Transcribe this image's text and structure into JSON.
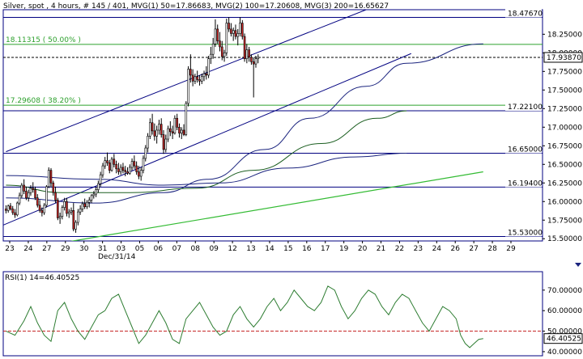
{
  "header": {
    "title": "Silver, spot , 4 hours, # 145 / 401, MVG(1) 50=17.86683, MVG(2) 100=17.20608, MVG(3) 200=16.65627"
  },
  "colors": {
    "candle_up": "#ffffff",
    "candle_down": "#c62828",
    "candle_outline": "#000000",
    "frame": "#000080",
    "channel": "#000080",
    "fib": "#2ca02c",
    "ma50": "#1a237e",
    "ma100": "#1b5e20",
    "ma200": "#1a237e",
    "ma_trend": "#33bb33",
    "rsi_line": "#2e7d32",
    "rsi_ref": "#c62828",
    "price_line": "#000000"
  },
  "chart_data": [
    {
      "type": "candlestick",
      "title": "Silver, spot , 4 hours, # 145 / 401, MVG(1) 50=17.86683, MVG(2) 100=17.20608, MVG(3) 200=16.65627",
      "ylim": [
        15.47,
        18.58
      ],
      "y_ticks": [
        15.5,
        15.75,
        16.0,
        16.25,
        16.5,
        16.75,
        17.0,
        17.25,
        17.5,
        17.75,
        18.0,
        18.25
      ],
      "y_tick_labels": [
        "15.50000",
        "15.75000",
        "16.00000",
        "16.25000",
        "16.50000",
        "16.75000",
        "17.00000",
        "17.25000",
        "17.50000",
        "17.75000",
        "18.00000",
        "18.25000"
      ],
      "x_ticks": [
        "23",
        "24",
        "27",
        "29",
        "30",
        "31",
        "03",
        "05",
        "06",
        "07",
        "08",
        "09",
        "12",
        "13",
        "14",
        "15",
        "16",
        "17",
        "19",
        "20",
        "21",
        "22",
        "23",
        "24",
        "26",
        "27",
        "28",
        "29"
      ],
      "x_sublabel": "Dec/31/14",
      "last_price": 17.9387,
      "last_price_label": "17.93870",
      "levels": [
        {
          "value": 18.4767,
          "label": "18.47670",
          "kind": "horizontal"
        },
        {
          "value": 17.221,
          "label": "17.22100",
          "kind": "horizontal"
        },
        {
          "value": 16.65,
          "label": "16.65000",
          "kind": "horizontal"
        },
        {
          "value": 16.194,
          "label": "16.19400",
          "kind": "horizontal"
        },
        {
          "value": 15.53,
          "label": "15.53000",
          "kind": "horizontal"
        }
      ],
      "fib_levels": [
        {
          "value": 18.11315,
          "label": "18.11315 ( 50.00% )"
        },
        {
          "value": 17.29608,
          "label": "17.29608 ( 38.20% )"
        }
      ],
      "channel": {
        "upper": [
          [
            0,
            16.67
          ],
          [
            160,
            18.58
          ]
        ],
        "lower": [
          [
            -18,
            15.47
          ],
          [
            180,
            17.99
          ]
        ]
      },
      "trend_line": [
        [
          20,
          15.42
        ],
        [
          212,
          16.4
        ]
      ],
      "candles": [
        [
          15.9,
          15.95,
          15.84,
          15.88
        ],
        [
          15.88,
          15.96,
          15.85,
          15.94
        ],
        [
          15.94,
          15.98,
          15.88,
          15.9
        ],
        [
          15.9,
          15.94,
          15.82,
          15.85
        ],
        [
          15.85,
          15.9,
          15.78,
          15.82
        ],
        [
          15.82,
          16.0,
          15.8,
          15.98
        ],
        [
          15.98,
          16.12,
          15.95,
          16.08
        ],
        [
          16.08,
          16.25,
          16.05,
          16.22
        ],
        [
          16.22,
          16.3,
          16.1,
          16.14
        ],
        [
          16.14,
          16.2,
          16.02,
          16.05
        ],
        [
          16.05,
          16.16,
          16.0,
          16.12
        ],
        [
          16.12,
          16.22,
          16.08,
          16.18
        ],
        [
          16.18,
          16.26,
          16.12,
          16.16
        ],
        [
          16.16,
          16.2,
          16.02,
          16.05
        ],
        [
          16.05,
          16.1,
          15.92,
          15.95
        ],
        [
          15.95,
          16.02,
          15.85,
          15.88
        ],
        [
          15.88,
          15.92,
          15.8,
          15.85
        ],
        [
          15.85,
          15.98,
          15.82,
          15.95
        ],
        [
          15.95,
          16.22,
          15.92,
          16.2
        ],
        [
          16.2,
          16.46,
          16.18,
          16.42
        ],
        [
          16.42,
          16.45,
          16.2,
          16.25
        ],
        [
          16.25,
          16.28,
          16.08,
          16.12
        ],
        [
          16.12,
          16.2,
          15.98,
          16.02
        ],
        [
          16.02,
          16.05,
          15.75,
          15.78
        ],
        [
          15.78,
          15.85,
          15.7,
          15.8
        ],
        [
          15.8,
          15.95,
          15.76,
          15.92
        ],
        [
          15.92,
          16.05,
          15.88,
          16.0
        ],
        [
          16.0,
          16.05,
          15.8,
          15.84
        ],
        [
          15.84,
          15.9,
          15.78,
          15.86
        ],
        [
          15.86,
          15.92,
          15.82,
          15.88
        ],
        [
          15.88,
          15.98,
          15.6,
          15.63
        ],
        [
          15.63,
          15.75,
          15.58,
          15.72
        ],
        [
          15.72,
          15.9,
          15.68,
          15.86
        ],
        [
          15.86,
          15.95,
          15.82,
          15.9
        ],
        [
          15.9,
          16.0,
          15.86,
          15.97
        ],
        [
          15.97,
          16.04,
          15.9,
          15.93
        ],
        [
          15.93,
          16.02,
          15.9,
          15.99
        ],
        [
          15.99,
          16.06,
          15.92,
          16.02
        ],
        [
          16.02,
          16.1,
          15.98,
          16.08
        ],
        [
          16.08,
          16.14,
          16.04,
          16.1
        ],
        [
          16.1,
          16.2,
          16.06,
          16.16
        ],
        [
          16.16,
          16.28,
          16.12,
          16.24
        ],
        [
          16.24,
          16.4,
          16.2,
          16.36
        ],
        [
          16.36,
          16.52,
          16.32,
          16.48
        ],
        [
          16.48,
          16.6,
          16.44,
          16.55
        ],
        [
          16.55,
          16.66,
          16.48,
          16.52
        ],
        [
          16.52,
          16.56,
          16.38,
          16.42
        ],
        [
          16.42,
          16.6,
          16.4,
          16.57
        ],
        [
          16.57,
          16.64,
          16.46,
          16.5
        ],
        [
          16.5,
          16.55,
          16.38,
          16.44
        ],
        [
          16.44,
          16.52,
          16.36,
          16.4
        ],
        [
          16.4,
          16.5,
          16.36,
          16.46
        ],
        [
          16.46,
          16.52,
          16.38,
          16.42
        ],
        [
          16.42,
          16.48,
          16.34,
          16.4
        ],
        [
          16.4,
          16.46,
          16.36,
          16.38
        ],
        [
          16.38,
          16.5,
          16.36,
          16.46
        ],
        [
          16.46,
          16.58,
          16.42,
          16.54
        ],
        [
          16.54,
          16.62,
          16.44,
          16.48
        ],
        [
          16.48,
          16.54,
          16.36,
          16.4
        ],
        [
          16.4,
          16.48,
          16.3,
          16.34
        ],
        [
          16.34,
          16.46,
          16.28,
          16.42
        ],
        [
          16.42,
          16.62,
          16.38,
          16.58
        ],
        [
          16.58,
          16.76,
          16.54,
          16.72
        ],
        [
          16.72,
          16.92,
          16.66,
          16.88
        ],
        [
          16.88,
          17.12,
          16.84,
          17.06
        ],
        [
          17.06,
          17.18,
          16.9,
          16.95
        ],
        [
          16.95,
          17.05,
          16.82,
          16.88
        ],
        [
          16.88,
          17.02,
          16.78,
          16.96
        ],
        [
          16.96,
          17.1,
          16.9,
          17.04
        ],
        [
          17.04,
          17.12,
          16.86,
          16.9
        ],
        [
          16.9,
          16.96,
          16.64,
          16.7
        ],
        [
          16.7,
          16.9,
          16.66,
          16.84
        ],
        [
          16.84,
          17.02,
          16.8,
          16.98
        ],
        [
          16.98,
          17.08,
          16.88,
          16.94
        ],
        [
          16.94,
          17.02,
          16.84,
          16.92
        ],
        [
          16.92,
          17.16,
          16.9,
          17.12
        ],
        [
          17.12,
          17.18,
          16.96,
          17.0
        ],
        [
          17.0,
          17.05,
          16.86,
          16.92
        ],
        [
          16.92,
          17.0,
          16.84,
          16.96
        ],
        [
          16.96,
          17.04,
          16.88,
          16.9
        ],
        [
          16.9,
          17.35,
          16.88,
          17.32
        ],
        [
          17.32,
          17.82,
          17.28,
          17.78
        ],
        [
          17.78,
          17.98,
          17.6,
          17.7
        ],
        [
          17.7,
          17.78,
          17.55,
          17.62
        ],
        [
          17.62,
          17.72,
          17.58,
          17.68
        ],
        [
          17.68,
          17.76,
          17.6,
          17.64
        ],
        [
          17.64,
          17.7,
          17.56,
          17.62
        ],
        [
          17.62,
          17.72,
          17.58,
          17.68
        ],
        [
          17.68,
          17.76,
          17.62,
          17.72
        ],
        [
          17.72,
          17.82,
          17.64,
          17.7
        ],
        [
          17.7,
          17.96,
          17.66,
          17.92
        ],
        [
          17.92,
          18.08,
          17.85,
          17.98
        ],
        [
          17.98,
          18.2,
          17.92,
          18.12
        ],
        [
          18.12,
          18.45,
          18.08,
          18.32
        ],
        [
          18.32,
          18.38,
          18.12,
          18.16
        ],
        [
          18.16,
          18.28,
          18.02,
          18.08
        ],
        [
          18.08,
          18.16,
          17.9,
          17.95
        ],
        [
          17.95,
          18.04,
          17.88,
          18.0
        ],
        [
          18.0,
          18.46,
          17.96,
          18.4
        ],
        [
          18.4,
          18.48,
          18.28,
          18.32
        ],
        [
          18.32,
          18.4,
          18.22,
          18.26
        ],
        [
          18.26,
          18.34,
          18.16,
          18.3
        ],
        [
          18.3,
          18.38,
          18.18,
          18.22
        ],
        [
          18.22,
          18.32,
          18.1,
          18.26
        ],
        [
          18.26,
          18.48,
          18.22,
          18.4
        ],
        [
          18.4,
          18.44,
          18.18,
          18.22
        ],
        [
          18.22,
          18.26,
          17.88,
          17.92
        ],
        [
          17.92,
          18.12,
          17.86,
          18.04
        ],
        [
          18.04,
          18.08,
          17.88,
          17.94
        ],
        [
          17.94,
          17.98,
          17.84,
          17.88
        ],
        [
          17.88,
          17.94,
          17.4,
          17.85
        ],
        [
          17.85,
          17.96,
          17.8,
          17.92
        ],
        [
          17.92,
          17.98,
          17.86,
          17.94
        ]
      ],
      "series": [
        {
          "name": "MVG(1) 50",
          "values": [
            [
              0,
              16.05
            ],
            [
              40,
              15.98
            ],
            [
              70,
              16.12
            ],
            [
              90,
              16.3
            ],
            [
              115,
              16.7
            ],
            [
              135,
              17.12
            ],
            [
              160,
              17.55
            ],
            [
              178,
              17.86
            ],
            [
              212,
              18.12
            ]
          ]
        },
        {
          "name": "MVG(2) 100",
          "values": [
            [
              0,
              16.22
            ],
            [
              25,
              16.12
            ],
            [
              55,
              16.12
            ],
            [
              85,
              16.18
            ],
            [
              110,
              16.42
            ],
            [
              140,
              16.78
            ],
            [
              165,
              17.12
            ],
            [
              178,
              17.22
            ]
          ]
        },
        {
          "name": "MVG(3) 200",
          "values": [
            [
              0,
              16.35
            ],
            [
              40,
              16.3
            ],
            [
              70,
              16.22
            ],
            [
              95,
              16.25
            ],
            [
              125,
              16.45
            ],
            [
              155,
              16.6
            ],
            [
              178,
              16.65
            ]
          ]
        }
      ]
    },
    {
      "type": "line",
      "title": "RSI(1) 14=46.40525",
      "ylim": [
        38.0,
        79.0
      ],
      "y_ticks": [
        40,
        50,
        60,
        70
      ],
      "y_tick_labels": [
        "40.00000",
        "50.00000",
        "60.00000",
        "70.00000"
      ],
      "reference_line": 50,
      "last_value": 46.40525,
      "last_value_label": "46.40525",
      "series": [
        {
          "name": "RSI(1) 14",
          "values": [
            [
              0,
              50
            ],
            [
              4,
              48
            ],
            [
              8,
              55
            ],
            [
              11,
              62
            ],
            [
              14,
              54
            ],
            [
              17,
              48
            ],
            [
              20,
              45
            ],
            [
              23,
              60
            ],
            [
              26,
              64
            ],
            [
              29,
              56
            ],
            [
              32,
              50
            ],
            [
              35,
              46
            ],
            [
              38,
              52
            ],
            [
              41,
              58
            ],
            [
              44,
              60
            ],
            [
              47,
              66
            ],
            [
              50,
              68
            ],
            [
              53,
              60
            ],
            [
              56,
              52
            ],
            [
              59,
              44
            ],
            [
              62,
              48
            ],
            [
              65,
              54
            ],
            [
              68,
              60
            ],
            [
              71,
              54
            ],
            [
              74,
              46
            ],
            [
              77,
              44
            ],
            [
              80,
              56
            ],
            [
              83,
              60
            ],
            [
              86,
              64
            ],
            [
              89,
              58
            ],
            [
              92,
              52
            ],
            [
              95,
              48
            ],
            [
              98,
              50
            ],
            [
              101,
              58
            ],
            [
              104,
              62
            ],
            [
              107,
              56
            ],
            [
              110,
              52
            ],
            [
              113,
              56
            ],
            [
              116,
              62
            ],
            [
              119,
              66
            ],
            [
              122,
              60
            ],
            [
              125,
              64
            ],
            [
              128,
              70
            ],
            [
              131,
              66
            ],
            [
              134,
              62
            ],
            [
              137,
              60
            ],
            [
              140,
              64
            ],
            [
              143,
              72
            ],
            [
              146,
              70
            ],
            [
              149,
              62
            ],
            [
              152,
              56
            ],
            [
              155,
              60
            ],
            [
              158,
              66
            ],
            [
              161,
              70
            ],
            [
              164,
              68
            ],
            [
              167,
              62
            ],
            [
              170,
              58
            ],
            [
              173,
              64
            ],
            [
              176,
              68
            ],
            [
              179,
              66
            ],
            [
              182,
              60
            ],
            [
              185,
              54
            ],
            [
              188,
              50
            ],
            [
              191,
              56
            ],
            [
              194,
              62
            ],
            [
              197,
              60
            ],
            [
              200,
              56
            ],
            [
              202,
              48
            ],
            [
              204,
              44
            ],
            [
              206,
              42
            ],
            [
              208,
              44
            ],
            [
              210,
              46
            ],
            [
              212,
              46.4
            ]
          ]
        }
      ]
    }
  ]
}
